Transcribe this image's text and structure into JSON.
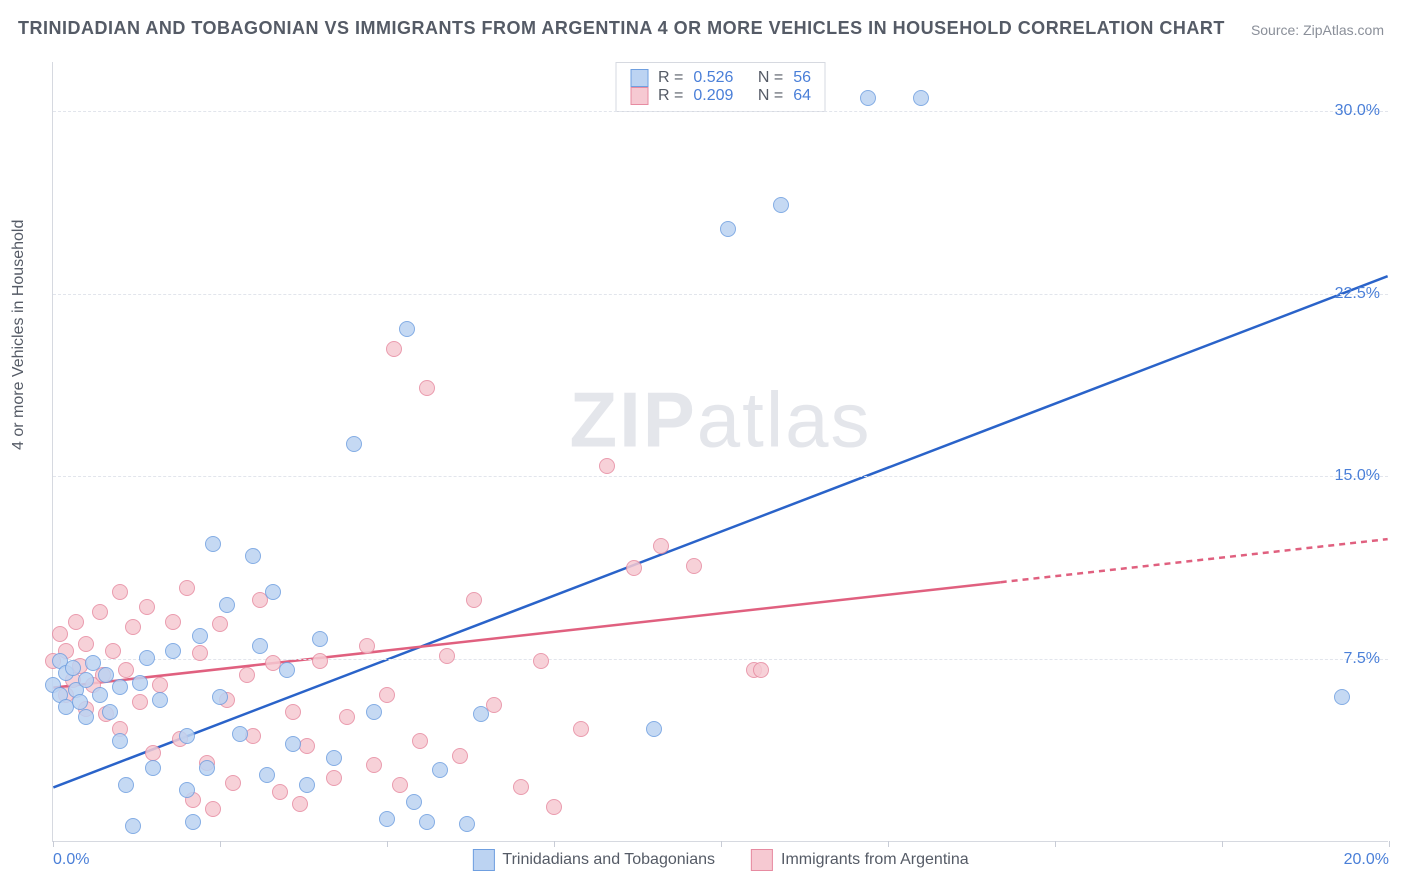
{
  "title": "TRINIDADIAN AND TOBAGONIAN VS IMMIGRANTS FROM ARGENTINA 4 OR MORE VEHICLES IN HOUSEHOLD CORRELATION CHART",
  "source": "Source: ZipAtlas.com",
  "ylabel": "4 or more Vehicles in Household",
  "watermark_bold": "ZIP",
  "watermark_light": "atlas",
  "colors": {
    "series_a_fill": "#bcd3f2",
    "series_a_stroke": "#6f9fe0",
    "series_a_line": "#2a63c9",
    "series_b_fill": "#f6c9d2",
    "series_b_stroke": "#e78ba1",
    "series_b_line": "#e0607f",
    "axis_text": "#4a7fd8",
    "grid": "#e2e5ec",
    "text": "#555b66"
  },
  "chart": {
    "type": "scatter",
    "xlim": [
      0,
      20
    ],
    "ylim": [
      0,
      32
    ],
    "x_tick_step": 2.5,
    "x_tick_labels": {
      "0": "0.0%",
      "20": "20.0%"
    },
    "y_ticks": [
      7.5,
      15.0,
      22.5,
      30.0
    ],
    "y_tick_labels": [
      "7.5%",
      "15.0%",
      "22.5%",
      "30.0%"
    ]
  },
  "legend_top": {
    "rows": [
      {
        "series": "a",
        "r_label": "R =",
        "r_value": "0.526",
        "n_label": "N =",
        "n_value": "56"
      },
      {
        "series": "b",
        "r_label": "R =",
        "r_value": "0.209",
        "n_label": "N =",
        "n_value": "64"
      }
    ]
  },
  "legend_bottom": [
    {
      "series": "a",
      "label": "Trinidadians and Tobagonians"
    },
    {
      "series": "b",
      "label": "Immigrants from Argentina"
    }
  ],
  "trend_lines": {
    "a": {
      "x1": 0,
      "y1": 2.2,
      "x2": 20,
      "y2": 23.2,
      "dash_from_x": null
    },
    "b": {
      "x1": 0,
      "y1": 6.3,
      "x2": 20,
      "y2": 12.4,
      "dash_from_x": 14.2
    }
  },
  "series_a_points": [
    [
      0.0,
      6.4
    ],
    [
      0.1,
      6.0
    ],
    [
      0.1,
      7.4
    ],
    [
      0.2,
      5.5
    ],
    [
      0.2,
      6.9
    ],
    [
      0.3,
      7.1
    ],
    [
      0.35,
      6.2
    ],
    [
      0.4,
      5.7
    ],
    [
      0.5,
      6.6
    ],
    [
      0.5,
      5.1
    ],
    [
      0.6,
      7.3
    ],
    [
      0.7,
      6.0
    ],
    [
      0.8,
      6.8
    ],
    [
      0.85,
      5.3
    ],
    [
      1.0,
      4.1
    ],
    [
      1.0,
      6.3
    ],
    [
      1.2,
      0.6
    ],
    [
      1.3,
      6.5
    ],
    [
      1.4,
      7.5
    ],
    [
      1.5,
      3.0
    ],
    [
      1.6,
      5.8
    ],
    [
      1.8,
      7.8
    ],
    [
      2.0,
      4.3
    ],
    [
      2.1,
      0.8
    ],
    [
      2.2,
      8.4
    ],
    [
      2.3,
      3.0
    ],
    [
      2.4,
      12.2
    ],
    [
      2.5,
      5.9
    ],
    [
      2.6,
      9.7
    ],
    [
      2.8,
      4.4
    ],
    [
      3.0,
      11.7
    ],
    [
      3.1,
      8.0
    ],
    [
      3.2,
      2.7
    ],
    [
      3.3,
      10.2
    ],
    [
      3.5,
      7.0
    ],
    [
      3.6,
      4.0
    ],
    [
      3.8,
      2.3
    ],
    [
      4.0,
      8.3
    ],
    [
      4.2,
      3.4
    ],
    [
      4.5,
      16.3
    ],
    [
      4.8,
      5.3
    ],
    [
      5.0,
      0.9
    ],
    [
      5.3,
      21.0
    ],
    [
      5.4,
      1.6
    ],
    [
      5.6,
      0.8
    ],
    [
      5.8,
      2.9
    ],
    [
      6.2,
      0.7
    ],
    [
      6.4,
      5.2
    ],
    [
      9.0,
      4.6
    ],
    [
      10.1,
      25.1
    ],
    [
      10.9,
      26.1
    ],
    [
      12.2,
      30.5
    ],
    [
      13.0,
      30.5
    ],
    [
      19.3,
      5.9
    ],
    [
      2.0,
      2.1
    ],
    [
      1.1,
      2.3
    ]
  ],
  "series_b_points": [
    [
      0.0,
      7.4
    ],
    [
      0.1,
      8.5
    ],
    [
      0.2,
      6.0
    ],
    [
      0.2,
      7.8
    ],
    [
      0.3,
      6.6
    ],
    [
      0.35,
      9.0
    ],
    [
      0.4,
      7.2
    ],
    [
      0.5,
      5.4
    ],
    [
      0.5,
      8.1
    ],
    [
      0.6,
      6.4
    ],
    [
      0.7,
      9.4
    ],
    [
      0.75,
      6.8
    ],
    [
      0.8,
      5.2
    ],
    [
      0.9,
      7.8
    ],
    [
      1.0,
      4.6
    ],
    [
      1.0,
      10.2
    ],
    [
      1.1,
      7.0
    ],
    [
      1.2,
      8.8
    ],
    [
      1.3,
      5.7
    ],
    [
      1.4,
      9.6
    ],
    [
      1.5,
      3.6
    ],
    [
      1.6,
      6.4
    ],
    [
      1.8,
      9.0
    ],
    [
      1.9,
      4.2
    ],
    [
      2.0,
      10.4
    ],
    [
      2.1,
      1.7
    ],
    [
      2.2,
      7.7
    ],
    [
      2.3,
      3.2
    ],
    [
      2.5,
      8.9
    ],
    [
      2.6,
      5.8
    ],
    [
      2.7,
      2.4
    ],
    [
      2.9,
      6.8
    ],
    [
      3.0,
      4.3
    ],
    [
      3.1,
      9.9
    ],
    [
      3.3,
      7.3
    ],
    [
      3.4,
      2.0
    ],
    [
      3.6,
      5.3
    ],
    [
      3.8,
      3.9
    ],
    [
      4.0,
      7.4
    ],
    [
      4.2,
      2.6
    ],
    [
      4.4,
      5.1
    ],
    [
      4.7,
      8.0
    ],
    [
      4.8,
      3.1
    ],
    [
      5.0,
      6.0
    ],
    [
      5.1,
      20.2
    ],
    [
      5.2,
      2.3
    ],
    [
      5.5,
      4.1
    ],
    [
      5.6,
      18.6
    ],
    [
      5.9,
      7.6
    ],
    [
      6.1,
      3.5
    ],
    [
      6.3,
      9.9
    ],
    [
      6.6,
      5.6
    ],
    [
      7.0,
      2.2
    ],
    [
      7.3,
      7.4
    ],
    [
      7.5,
      1.4
    ],
    [
      7.9,
      4.6
    ],
    [
      8.3,
      15.4
    ],
    [
      8.7,
      11.2
    ],
    [
      9.1,
      12.1
    ],
    [
      9.6,
      11.3
    ],
    [
      10.5,
      7.0
    ],
    [
      10.6,
      7.0
    ],
    [
      2.4,
      1.3
    ],
    [
      3.7,
      1.5
    ]
  ]
}
